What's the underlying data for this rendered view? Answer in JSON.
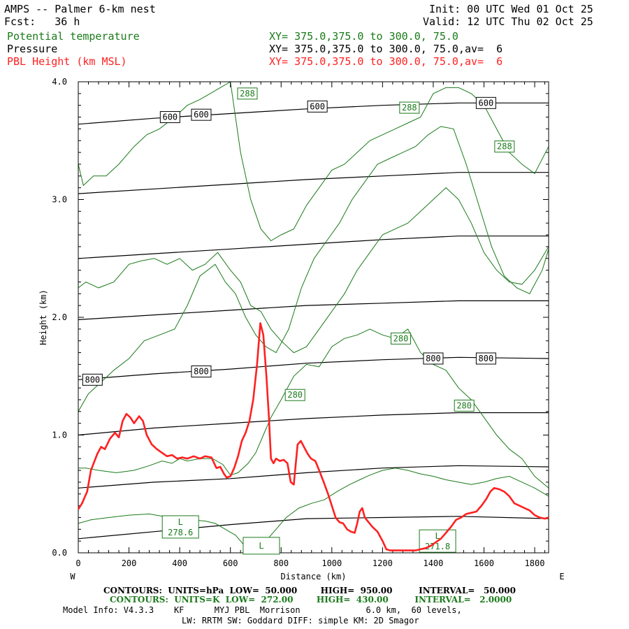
{
  "header": {
    "title": "AMPS -- Palmer 6-km nest",
    "fcst": "Fcst:   36 h",
    "init": "Init: 00 UTC Wed 01 Oct 25",
    "valid": "Valid: 12 UTC Thu 02 Oct 25",
    "layers": [
      {
        "name": "Potential temperature",
        "xy": "XY= 375.0,375.0 to 300.0, 75.0",
        "color": "#1a7a1a"
      },
      {
        "name": "Pressure",
        "xy": "XY= 375.0,375.0 to 300.0, 75.0,av=  6",
        "color": "#000000"
      },
      {
        "name": "PBL Height (km MSL)",
        "xy": "XY= 375.0,375.0 to 300.0, 75.0,av=  6",
        "color": "#ff2020"
      }
    ]
  },
  "footer": {
    "pressure_contours": "CONTOURS:  UNITS=hPa  LOW=  50.000        HIGH=  950.00         INTERVAL=   50.000",
    "theta_contours": "CONTOURS:  UNITS=K  LOW=  272.00        HIGH=  430.00         INTERVAL=   2.0000",
    "model_info_1": "Model Info: V4.3.3    KF      MYJ PBL  Morrison             6.0 km,  60 levels,",
    "model_info_2": "LW: RRTM SW: Goddard DIFF: simple KM: 2D Smagor"
  },
  "chart_data": {
    "type": "line",
    "xlabel": "Distance (km)",
    "ylabel": "Height (km)",
    "xlim": [
      0,
      1855
    ],
    "ylim": [
      0,
      4.0
    ],
    "x_ticks": [
      0,
      200,
      400,
      600,
      800,
      1000,
      1200,
      1400,
      1600,
      1800
    ],
    "y_ticks": [
      {
        "value": 0,
        "label": "0.0"
      },
      {
        "value": 1,
        "label": "1.0"
      },
      {
        "value": 2,
        "label": "2.0"
      },
      {
        "value": 3,
        "label": "3.0"
      },
      {
        "value": 4,
        "label": "4.0"
      }
    ],
    "x_end_labels": {
      "left": "W",
      "right": "E"
    },
    "contour_labels": [
      {
        "text": "600",
        "x": 362,
        "y": 3.7,
        "color": "#000000"
      },
      {
        "text": "600",
        "x": 485,
        "y": 3.72,
        "color": "#000000"
      },
      {
        "text": "600",
        "x": 943,
        "y": 3.79,
        "color": "#000000"
      },
      {
        "text": "600",
        "x": 1608,
        "y": 3.82,
        "color": "#000000"
      },
      {
        "text": "800",
        "x": 56,
        "y": 1.47,
        "color": "#000000"
      },
      {
        "text": "800",
        "x": 485,
        "y": 1.54,
        "color": "#000000"
      },
      {
        "text": "800",
        "x": 1400,
        "y": 1.65,
        "color": "#000000"
      },
      {
        "text": "800",
        "x": 1608,
        "y": 1.65,
        "color": "#000000"
      },
      {
        "text": "288",
        "x": 667,
        "y": 3.9,
        "color": "#1a7a1a"
      },
      {
        "text": "288",
        "x": 1306,
        "y": 3.78,
        "color": "#1a7a1a"
      },
      {
        "text": "288",
        "x": 1681,
        "y": 3.45,
        "color": "#1a7a1a"
      },
      {
        "text": "280",
        "x": 1272,
        "y": 1.82,
        "color": "#1a7a1a"
      },
      {
        "text": "280",
        "x": 855,
        "y": 1.34,
        "color": "#1a7a1a"
      },
      {
        "text": "280",
        "x": 1522,
        "y": 1.25,
        "color": "#1a7a1a"
      }
    ],
    "low_labels": [
      {
        "text": "L",
        "value": "278.6",
        "x": 403,
        "y": 0.22
      },
      {
        "text": "L",
        "value": "",
        "x": 722,
        "y": 0.06
      },
      {
        "text": "L",
        "value": "271.8",
        "x": 1417,
        "y": 0.1
      }
    ],
    "series": [
      {
        "name": "PBL Height (km MSL)",
        "color": "#ff2020",
        "x": [
          0,
          15,
          35,
          50,
          75,
          90,
          105,
          125,
          145,
          160,
          175,
          190,
          205,
          220,
          240,
          255,
          270,
          290,
          310,
          330,
          350,
          370,
          390,
          410,
          430,
          455,
          480,
          500,
          525,
          545,
          560,
          575,
          585,
          600,
          615,
          630,
          645,
          660,
          675,
          690,
          705,
          718,
          730,
          742,
          752,
          760,
          770,
          780,
          795,
          810,
          825,
          838,
          850,
          865,
          878,
          890,
          905,
          918,
          935,
          950,
          968,
          985,
          1000,
          1015,
          1030,
          1045,
          1060,
          1075,
          1090,
          1100,
          1110,
          1120,
          1130,
          1145,
          1160,
          1180,
          1200,
          1215,
          1230,
          1250,
          1270,
          1290,
          1310,
          1330,
          1350,
          1370,
          1390,
          1410,
          1430,
          1450,
          1470,
          1490,
          1510,
          1530,
          1550,
          1570,
          1590,
          1610,
          1625,
          1640,
          1660,
          1680,
          1700,
          1720,
          1740,
          1760,
          1780,
          1800,
          1820,
          1840,
          1855
        ],
        "values": [
          0.37,
          0.42,
          0.52,
          0.7,
          0.84,
          0.9,
          0.88,
          0.97,
          1.02,
          0.98,
          1.12,
          1.18,
          1.15,
          1.1,
          1.16,
          1.12,
          1.0,
          0.92,
          0.88,
          0.85,
          0.82,
          0.83,
          0.8,
          0.81,
          0.8,
          0.82,
          0.8,
          0.82,
          0.81,
          0.72,
          0.73,
          0.67,
          0.64,
          0.65,
          0.72,
          0.82,
          0.95,
          1.02,
          1.12,
          1.3,
          1.6,
          1.95,
          1.85,
          1.5,
          1.15,
          0.8,
          0.76,
          0.8,
          0.78,
          0.79,
          0.76,
          0.6,
          0.58,
          0.92,
          0.95,
          0.9,
          0.84,
          0.8,
          0.78,
          0.7,
          0.6,
          0.5,
          0.4,
          0.3,
          0.26,
          0.25,
          0.2,
          0.18,
          0.17,
          0.25,
          0.35,
          0.38,
          0.3,
          0.26,
          0.22,
          0.18,
          0.1,
          0.03,
          0.02,
          0.02,
          0.02,
          0.02,
          0.02,
          0.02,
          0.03,
          0.04,
          0.06,
          0.09,
          0.12,
          0.17,
          0.22,
          0.28,
          0.3,
          0.33,
          0.34,
          0.35,
          0.4,
          0.46,
          0.52,
          0.55,
          0.54,
          0.52,
          0.48,
          0.42,
          0.4,
          0.38,
          0.36,
          0.32,
          0.3,
          0.29,
          0.3
        ]
      }
    ],
    "pressure_lines": [
      {
        "x": [
          0,
          300,
          600,
          900,
          1200,
          1500,
          1855
        ],
        "values": [
          0.12,
          0.18,
          0.24,
          0.29,
          0.3,
          0.31,
          0.29
        ]
      },
      {
        "x": [
          0,
          300,
          600,
          900,
          1200,
          1500,
          1855
        ],
        "values": [
          0.55,
          0.6,
          0.63,
          0.68,
          0.72,
          0.74,
          0.73
        ]
      },
      {
        "x": [
          0,
          300,
          600,
          900,
          1200,
          1500,
          1855
        ],
        "values": [
          1.0,
          1.06,
          1.1,
          1.14,
          1.17,
          1.19,
          1.19
        ]
      },
      {
        "x": [
          0,
          300,
          600,
          900,
          1200,
          1500,
          1855
        ],
        "values": [
          1.47,
          1.52,
          1.56,
          1.61,
          1.64,
          1.66,
          1.65
        ]
      },
      {
        "x": [
          0,
          300,
          600,
          900,
          1200,
          1500,
          1855
        ],
        "values": [
          1.98,
          2.02,
          2.06,
          2.1,
          2.12,
          2.14,
          2.14
        ]
      },
      {
        "x": [
          0,
          300,
          600,
          900,
          1200,
          1500,
          1855
        ],
        "values": [
          2.5,
          2.54,
          2.58,
          2.62,
          2.66,
          2.69,
          2.69
        ]
      },
      {
        "x": [
          0,
          300,
          600,
          900,
          1200,
          1500,
          1855
        ],
        "values": [
          3.05,
          3.09,
          3.13,
          3.17,
          3.2,
          3.23,
          3.23
        ]
      },
      {
        "x": [
          0,
          300,
          600,
          900,
          1200,
          1500,
          1855
        ],
        "values": [
          3.64,
          3.69,
          3.73,
          3.77,
          3.8,
          3.82,
          3.82
        ]
      }
    ],
    "theta_lines": [
      {
        "x": [
          0,
          30,
          80,
          150,
          220,
          280,
          330,
          370,
          400,
          430,
          480,
          530,
          570,
          600,
          630,
          670,
          700,
          730,
          760,
          800,
          850,
          900,
          950,
          1000,
          1050,
          1100,
          1150,
          1200,
          1250,
          1300,
          1350,
          1400,
          1450,
          1500,
          1550,
          1600,
          1650,
          1700,
          1750,
          1800,
          1855
        ],
        "values": [
          0.72,
          0.72,
          0.7,
          0.68,
          0.7,
          0.74,
          0.78,
          0.76,
          0.8,
          0.78,
          0.8,
          0.8,
          0.75,
          0.66,
          0.68,
          0.76,
          0.85,
          1.0,
          1.15,
          1.3,
          1.5,
          1.6,
          1.58,
          1.75,
          1.82,
          1.85,
          1.9,
          1.85,
          1.82,
          1.9,
          1.7,
          1.6,
          1.55,
          1.4,
          1.3,
          1.15,
          1.0,
          0.88,
          0.8,
          0.65,
          0.55
        ]
      },
      {
        "x": [
          0,
          40,
          90,
          140,
          200,
          260,
          320,
          380,
          430,
          480,
          540,
          580,
          620,
          660,
          700,
          740,
          780,
          830,
          880,
          930,
          980,
          1030,
          1080,
          1130,
          1180,
          1230,
          1280,
          1330,
          1380,
          1430,
          1480,
          1530,
          1580,
          1630,
          1680,
          1730,
          1780,
          1830,
          1855
        ],
        "values": [
          1.2,
          1.35,
          1.45,
          1.55,
          1.65,
          1.8,
          1.85,
          1.9,
          2.1,
          2.35,
          2.45,
          2.3,
          2.2,
          2.0,
          1.85,
          1.75,
          1.7,
          1.9,
          2.25,
          2.5,
          2.65,
          2.8,
          3.0,
          3.15,
          3.3,
          3.35,
          3.4,
          3.45,
          3.55,
          3.62,
          3.6,
          3.3,
          2.95,
          2.6,
          2.35,
          2.25,
          2.2,
          2.4,
          2.58
        ]
      },
      {
        "x": [
          0,
          20,
          60,
          110,
          160,
          220,
          270,
          320,
          380,
          430,
          480,
          520,
          560,
          600,
          640,
          680,
          720,
          760,
          800,
          850,
          900,
          950,
          1000,
          1050,
          1100,
          1150,
          1200,
          1250,
          1300,
          1350,
          1400,
          1450,
          1500,
          1550,
          1600,
          1650,
          1700,
          1750,
          1800,
          1855
        ],
        "values": [
          3.3,
          3.12,
          3.2,
          3.2,
          3.3,
          3.45,
          3.55,
          3.6,
          3.7,
          3.8,
          3.85,
          3.9,
          3.95,
          4.0,
          3.4,
          3.0,
          2.75,
          2.65,
          2.7,
          2.75,
          2.95,
          3.1,
          3.25,
          3.3,
          3.4,
          3.5,
          3.55,
          3.6,
          3.65,
          3.7,
          3.9,
          3.95,
          3.95,
          3.9,
          3.8,
          3.6,
          3.4,
          3.3,
          3.22,
          3.45
        ]
      },
      {
        "x": [
          0,
          30,
          80,
          140,
          200,
          250,
          300,
          350,
          400,
          450,
          500,
          550,
          600,
          640,
          680,
          720,
          760,
          800,
          850,
          900,
          950,
          1000,
          1050,
          1100,
          1150,
          1200,
          1250,
          1300,
          1350,
          1400,
          1450,
          1500,
          1550,
          1600,
          1650,
          1700,
          1750,
          1800,
          1855
        ],
        "values": [
          2.25,
          2.3,
          2.25,
          2.3,
          2.45,
          2.48,
          2.5,
          2.45,
          2.5,
          2.4,
          2.45,
          2.55,
          2.4,
          2.3,
          2.1,
          2.05,
          1.9,
          1.8,
          1.7,
          1.75,
          1.9,
          2.05,
          2.2,
          2.4,
          2.55,
          2.7,
          2.75,
          2.8,
          2.9,
          3.0,
          3.1,
          3.0,
          2.8,
          2.55,
          2.4,
          2.3,
          2.28,
          2.4,
          2.6
        ]
      },
      {
        "x": [
          0,
          50,
          120,
          200,
          280,
          360,
          440,
          500,
          540,
          580,
          620,
          660,
          700,
          740,
          780,
          820,
          870,
          920,
          970,
          1020,
          1070,
          1110,
          1150,
          1200,
          1250,
          1300,
          1350,
          1400,
          1450,
          1500,
          1550,
          1600,
          1650,
          1700,
          1750,
          1800,
          1855
        ],
        "values": [
          0.25,
          0.28,
          0.3,
          0.32,
          0.33,
          0.3,
          0.28,
          0.27,
          0.25,
          0.2,
          0.15,
          0.05,
          0.02,
          0.1,
          0.2,
          0.3,
          0.38,
          0.42,
          0.45,
          0.52,
          0.58,
          0.62,
          0.66,
          0.7,
          0.72,
          0.7,
          0.67,
          0.65,
          0.62,
          0.6,
          0.58,
          0.6,
          0.63,
          0.65,
          0.6,
          0.55,
          0.48
        ]
      }
    ]
  }
}
